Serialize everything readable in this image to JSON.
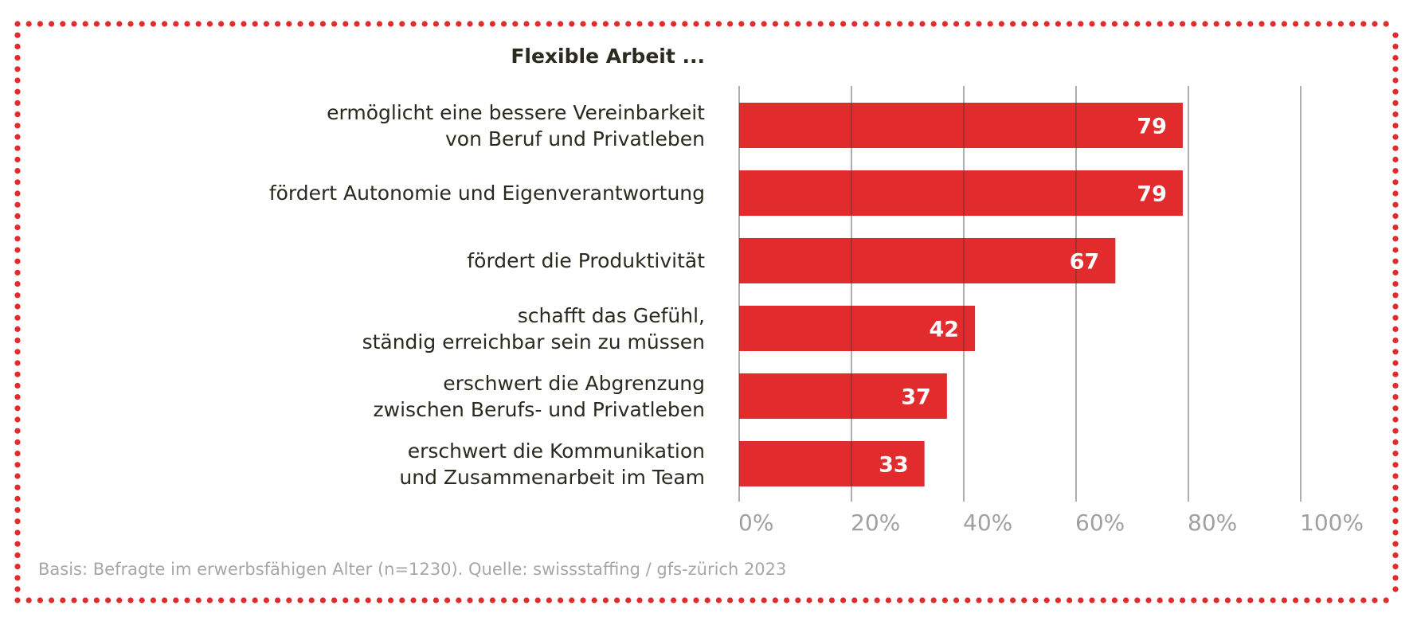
{
  "chart_data": {
    "type": "bar",
    "orientation": "horizontal",
    "title": "Flexible Arbeit ...",
    "categories": [
      "ermöglicht eine bessere Vereinbarkeit\nvon Beruf und Privatleben",
      "fördert Autonomie und Eigenverantwortung",
      "fördert die Produktivität",
      "schafft das Gefühl,\nständig erreichbar sein zu müssen",
      "erschwert die Abgrenzung\nzwischen Berufs- und Privatleben",
      "erschwert die Kommunikation\nund Zusammenarbeit im Team"
    ],
    "values": [
      79,
      79,
      67,
      42,
      37,
      33
    ],
    "data_labels": [
      "79",
      "79",
      "67",
      "42",
      "37",
      "33"
    ],
    "xlim": [
      0,
      100
    ],
    "x_ticks": [
      "0%",
      "20%",
      "40%",
      "60%",
      "80%",
      "100%"
    ],
    "grid": true,
    "bar_color": "#e12b2d",
    "border_color": "#e12b2d",
    "footnote": "Basis: Befragte im erwerbsfähigen Alter (n=1230). Quelle: swissstaffing / gfs-zürich 2023"
  }
}
